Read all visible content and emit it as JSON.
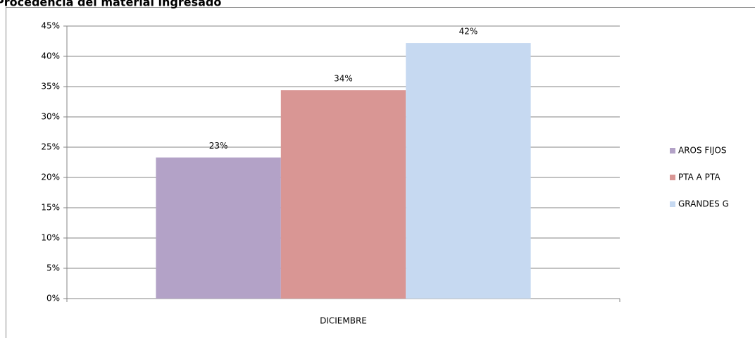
{
  "chart_data": {
    "type": "bar",
    "title": "Procedencia del material ingresado",
    "categories": [
      "DICIEMBRE"
    ],
    "series": [
      {
        "name": "AROS FIJOS",
        "color": "#b3a2c7",
        "values": [
          23.3
        ],
        "value_labels": [
          "23%"
        ]
      },
      {
        "name": "PTA A PTA",
        "color": "#d99694",
        "values": [
          34.4
        ],
        "value_labels": [
          "34%"
        ]
      },
      {
        "name": "GRANDES G",
        "color": "#c6d9f1",
        "values": [
          42.2
        ],
        "value_labels": [
          "42%"
        ]
      }
    ],
    "ylim": [
      0,
      45
    ],
    "yticks": [
      {
        "value": 0,
        "label": "0%"
      },
      {
        "value": 5,
        "label": "5%"
      },
      {
        "value": 10,
        "label": "10%"
      },
      {
        "value": 15,
        "label": "15%"
      },
      {
        "value": 20,
        "label": "20%"
      },
      {
        "value": 25,
        "label": "25%"
      },
      {
        "value": 30,
        "label": "30%"
      },
      {
        "value": 35,
        "label": "35%"
      },
      {
        "value": 40,
        "label": "40%"
      },
      {
        "value": 45,
        "label": "45%"
      }
    ],
    "grid": true,
    "legend": "right"
  }
}
